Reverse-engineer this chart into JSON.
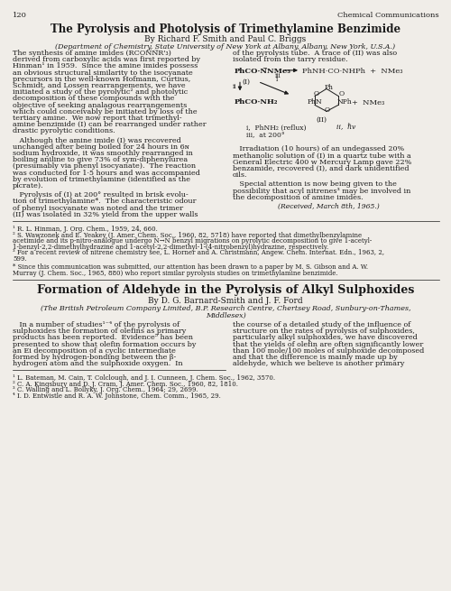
{
  "page_number": "120",
  "journal_name": "Chemical Communications",
  "background_color": "#f0ede8",
  "text_color": "#1a1a1a",
  "article1_title": "The Pyrolysis and Photolysis of Trimethylamine Benzimide",
  "article1_authors": "By Richard F. Smith and Paul C. Briggs",
  "article1_affiliation": "(Department of Chemistry, State University of New York at Albany, Albany, New York, U.S.A.)",
  "article1_left_para1": [
    "The synthesis of amine imides (RCONN̅R'₃)",
    "derived from carboxylic acids was first reported by",
    "Hinman¹ in 1959.  Since the amine imides possess",
    "an obvious structural similarity to the isocyanate",
    "precursors in the well-known Hofmann, Curtius,",
    "Schmidt, and Lossen rearrangements, we have",
    "initiated a study of the pyrolytic² and photolytic",
    "decomposition of these compounds with the",
    "objective of seeking analagous rearrangements",
    "which could conceivably be initiated by loss of the",
    "tertiary amine.  We now report that trimethyl-",
    "amine benzimide (I) can be rearranged under rather",
    "drastic pyrolytic conditions."
  ],
  "article1_left_para2": [
    "Although the amine imide (I) was recovered",
    "unchanged after being boiled for 24 hours in 6ɴ",
    "sodium hydroxide, it was smoothly rearranged in",
    "boiling aniline to give 73% of sym-diphenylurea",
    "(presumably via phenyl isocyanate).  The reaction",
    "was conducted for 1·5 hours and was accompanied",
    "by evolution of trimethylamine (identified as the",
    "picrate)."
  ],
  "article1_left_para3": [
    "Pyrolysis of (I) at 200° resulted in brisk evolu-",
    "tion of trimethylamine*.  The characteristic odour",
    "of phenyl isocyanate was noted and the trimer",
    "(II) was isolated in 32% yield from the upper walls"
  ],
  "article1_right_para1": [
    "of the pyrolysis tube.  A trace of (II) was also",
    "isolated from the tarry residue."
  ],
  "article1_right_para2": [
    "Irradiation (10 hours) of an undegassed 20%",
    "methanolic solution of (I) in a quartz tube with a",
    "General Electric 400 w Mercury Lamp gave 22%",
    "benzamide, recovered (I), and dark unidentified",
    "oils."
  ],
  "article1_right_para3": [
    "Special attention is now being given to the",
    "possibility that acyl nitrenes³ may be involved in",
    "the decomposition of amine imides."
  ],
  "article1_received": "(Received, March 8th, 1965.)",
  "article1_fn1": "¹ R. L. Hinman, J. Org. Chem., 1959, 24, 660.",
  "article1_fn2a": "² S. Wawzonek and E. Yeakey (J. Amer. Chem. Soc., 1960, 82, 5718) have reported that dimethylbenzylamine",
  "article1_fn2b": "acetimide and its p-nitro-analogue undergo N→N benzyl migrations on pyrolytic decomposition to give 1-acetyl-",
  "article1_fn2c": "1-benzyl-2,2-dimethylhydrazine and 1-acetyl-2,2-dimethyl-1-(4-nitrobenzyl)hydrazine, respectively.",
  "article1_fn3a": "³ For a recent review of nitrene chemistry see, L. Horner and A. Christmann, Angew. Chem. Internat. Edn., 1963, 2,",
  "article1_fn3b": "599.",
  "article1_fnstar_a": "* Since this communication was submitted, our attention has been drawn to a paper by M. S. Gibson and A. W.",
  "article1_fnstar_b": "Murray (J. Chem. Soc., 1965, 880) who report similar pyrolysis studies on trimethylamine benzimide.",
  "article2_title": "Formation of Aldehyde in the Pyrolysis of Alkyl Sulphoxides",
  "article2_authors": "By D. G. Barnard-Smith and J. F. Ford",
  "article2_affiliation_a": "(The British Petroleum Company Limited, B.P. Research Centre, Chertsey Road, Sunbury-on-Thames,",
  "article2_affiliation_b": "Middlesex)",
  "article2_left_para1": [
    "In a number of studies¹⁻⁴ of the pyrolysis of",
    "sulphoxides the formation of olefins as primary",
    "products has been reported.  Evidence⁵ has been",
    "presented to show that olefin formation occurs by",
    "an Ei decomposition of a cyclic intermediate",
    "formed by hydrogen-bonding between the β-",
    "hydrogen atom and the sulphoxide oxygen.  In"
  ],
  "article2_right_para1": [
    "the course of a detailed study of the influence of",
    "structure on the rates of pyrolysis of sulphoxides,",
    "particularly alkyl sulphoxides, we have discovered",
    "that the yields of olefin are often significantly lower",
    "than 100 mole/100 moles of sulphoxide decomposed",
    "and that the difference is mainly made up by",
    "aldehyde, which we believe is another primary"
  ],
  "article2_fn1": "¹ L. Bateman, M. Cain, T. Colclough, and J. I. Cunneen, J. Chem. Soc., 1962, 3570.",
  "article2_fn2": "² C. A. Kingsbury and D. J. Cram, J. Amer. Chem. Soc., 1960, 82, 1810.",
  "article2_fn3": "³ C. Walling and L. Bollyky, J. Org. Chem., 1964; 29, 2699.",
  "article2_fn4": "⁴ I. D. Entwistle and R. A. W. Johnstone, Chem. Comm., 1965, 29."
}
